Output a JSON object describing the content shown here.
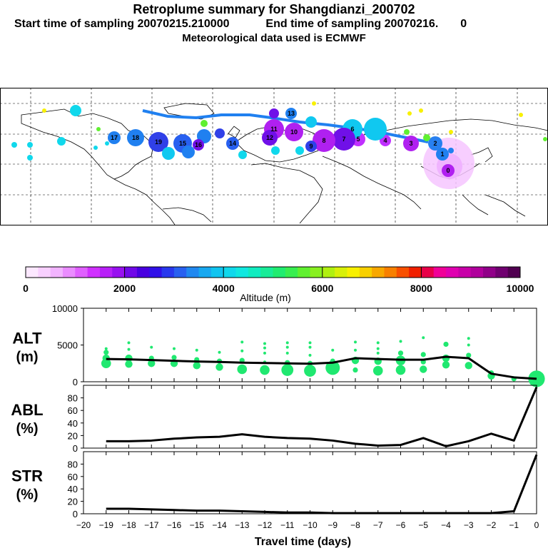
{
  "header": {
    "title": "Retroplume summary for Shangdianzi_200702",
    "start_label": "Start time of sampling 20070215.210000",
    "end_label": "End time of sampling 20070216.",
    "end_value": "0",
    "met_line": "Meteorological data used is ECMWF"
  },
  "colorbar": {
    "label": "Altitude (m)",
    "ticks": [
      0,
      2000,
      4000,
      6000,
      8000,
      10000
    ],
    "colors": [
      "#fce8ff",
      "#f8d0ff",
      "#f2b4ff",
      "#ea8cff",
      "#e060ff",
      "#d030ff",
      "#b820f8",
      "#9810f0",
      "#7008e8",
      "#4800e0",
      "#3010e8",
      "#2838ee",
      "#2860f0",
      "#2088f0",
      "#18a8f0",
      "#10c4f0",
      "#10d8ec",
      "#10e8e0",
      "#10ecc0",
      "#18ec98",
      "#20ec70",
      "#38ee50",
      "#60f030",
      "#88f020",
      "#b0f010",
      "#d8f008",
      "#f8f000",
      "#f8d000",
      "#f8a800",
      "#f88000",
      "#f85000",
      "#f02000",
      "#e80048",
      "#f00098",
      "#e000b0",
      "#c800a8",
      "#b0009c",
      "#900088",
      "#700070",
      "#500050"
    ]
  },
  "map": {
    "trajectory_labels": [
      "0",
      "1",
      "2",
      "3",
      "4",
      "5",
      "6",
      "7",
      "8",
      "9",
      "10",
      "11",
      "12",
      "13",
      "14",
      "15",
      "16",
      "17",
      "18",
      "19"
    ]
  },
  "chart_data": {
    "type": "line",
    "x_label": "Travel time (days)",
    "x_ticks": [
      -20,
      -19,
      -18,
      -17,
      -16,
      -15,
      -14,
      -13,
      -12,
      -11,
      -10,
      -9,
      -8,
      -7,
      -6,
      -5,
      -4,
      -3,
      -2,
      -1,
      0
    ],
    "x_tick_labels": [
      "−20",
      "−19",
      "−18",
      "−17",
      "−16",
      "−15",
      "−14",
      "−13",
      "−12",
      "−11",
      "−10",
      "−9",
      "−8",
      "−7",
      "−6",
      "−5",
      "−4",
      "−3",
      "−2",
      "−1",
      "0"
    ],
    "xlim": [
      -20,
      0
    ],
    "panels": [
      {
        "id": "alt",
        "title_line1": "ALT",
        "title_line2": "(m)",
        "ylim": [
          0,
          10000
        ],
        "y_ticks": [
          0,
          5000,
          10000
        ],
        "y_tick_labels": [
          "0",
          "5000",
          "10000"
        ],
        "mean_line": [
          [
            -19,
            3100
          ],
          [
            -18,
            3050
          ],
          [
            -17,
            2950
          ],
          [
            -16,
            2850
          ],
          [
            -15,
            2750
          ],
          [
            -14,
            2700
          ],
          [
            -13,
            2600
          ],
          [
            -12,
            2550
          ],
          [
            -11,
            2500
          ],
          [
            -10,
            2450
          ],
          [
            -9,
            2600
          ],
          [
            -8,
            3200
          ],
          [
            -7,
            3100
          ],
          [
            -6,
            3000
          ],
          [
            -5,
            3000
          ],
          [
            -4,
            3400
          ],
          [
            -3,
            3200
          ],
          [
            -2,
            1100
          ],
          [
            -1,
            600
          ],
          [
            0,
            400
          ]
        ],
        "clusters": [
          [
            -19,
            2500,
            3
          ],
          [
            -19,
            3200,
            2
          ],
          [
            -19,
            4000,
            1
          ],
          [
            -19,
            4500,
            0
          ],
          [
            -18,
            2400,
            2
          ],
          [
            -18,
            3200,
            2
          ],
          [
            -18,
            4400,
            0
          ],
          [
            -18,
            5300,
            0
          ],
          [
            -17,
            2500,
            2
          ],
          [
            -17,
            3200,
            1
          ],
          [
            -17,
            4700,
            0
          ],
          [
            -16,
            2500,
            2
          ],
          [
            -16,
            3300,
            1
          ],
          [
            -16,
            4500,
            0
          ],
          [
            -15,
            2200,
            2
          ],
          [
            -15,
            3000,
            1
          ],
          [
            -15,
            4300,
            0
          ],
          [
            -14,
            2000,
            2
          ],
          [
            -14,
            2800,
            1
          ],
          [
            -14,
            4000,
            0
          ],
          [
            -13,
            1700,
            3
          ],
          [
            -13,
            2900,
            1
          ],
          [
            -13,
            4200,
            0
          ],
          [
            -13,
            5400,
            0
          ],
          [
            -12,
            1600,
            3
          ],
          [
            -12,
            2700,
            0
          ],
          [
            -12,
            3900,
            0
          ],
          [
            -12,
            4600,
            0
          ],
          [
            -12,
            5200,
            0
          ],
          [
            -11,
            1600,
            4
          ],
          [
            -11,
            2600,
            1
          ],
          [
            -11,
            3900,
            0
          ],
          [
            -11,
            4700,
            0
          ],
          [
            -11,
            5300,
            0
          ],
          [
            -10,
            1500,
            4
          ],
          [
            -10,
            2500,
            1
          ],
          [
            -10,
            3600,
            0
          ],
          [
            -10,
            4700,
            0
          ],
          [
            -10,
            5300,
            0
          ],
          [
            -9,
            1900,
            5
          ],
          [
            -9,
            2800,
            1
          ],
          [
            -9,
            4300,
            0
          ],
          [
            -8,
            1600,
            1
          ],
          [
            -8,
            2900,
            2
          ],
          [
            -8,
            4300,
            0
          ],
          [
            -8,
            5400,
            0
          ],
          [
            -7,
            1500,
            3
          ],
          [
            -7,
            2800,
            2
          ],
          [
            -7,
            3900,
            0
          ],
          [
            -7,
            4500,
            0
          ],
          [
            -7,
            5300,
            0
          ],
          [
            -6,
            1600,
            3
          ],
          [
            -6,
            2900,
            3
          ],
          [
            -6,
            3900,
            1
          ],
          [
            -6,
            5500,
            0
          ],
          [
            -5,
            1700,
            2
          ],
          [
            -5,
            2700,
            1
          ],
          [
            -5,
            3700,
            1
          ],
          [
            -5,
            6000,
            0
          ],
          [
            -4,
            2300,
            2
          ],
          [
            -4,
            3200,
            2
          ],
          [
            -4,
            5100,
            1
          ],
          [
            -3,
            2200,
            2
          ],
          [
            -3,
            3600,
            1
          ],
          [
            -3,
            5000,
            0
          ],
          [
            -3,
            5900,
            0
          ],
          [
            -2,
            800,
            2
          ],
          [
            -2,
            1200,
            1
          ],
          [
            -1,
            400,
            1
          ],
          [
            0,
            400,
            6
          ]
        ]
      },
      {
        "id": "abl",
        "title_line1": "ABL",
        "title_line2": "(%)",
        "ylim": [
          0,
          100
        ],
        "y_ticks": [
          0,
          20,
          40,
          60,
          80
        ],
        "y_tick_labels": [
          "0",
          "20",
          "40",
          "60",
          "80"
        ],
        "line": [
          [
            -19,
            11
          ],
          [
            -18,
            11
          ],
          [
            -17,
            12
          ],
          [
            -16,
            15
          ],
          [
            -15,
            17
          ],
          [
            -14,
            18
          ],
          [
            -13,
            22
          ],
          [
            -12,
            18
          ],
          [
            -11,
            16
          ],
          [
            -10,
            15
          ],
          [
            -9,
            12
          ],
          [
            -8,
            7
          ],
          [
            -7,
            4
          ],
          [
            -6,
            5
          ],
          [
            -5,
            16
          ],
          [
            -4,
            3
          ],
          [
            -3,
            11
          ],
          [
            -2,
            23
          ],
          [
            -1,
            12
          ],
          [
            0,
            97
          ]
        ]
      },
      {
        "id": "str",
        "title_line1": "STR",
        "title_line2": "(%)",
        "ylim": [
          0,
          100
        ],
        "y_ticks": [
          0,
          20,
          40,
          60,
          80
        ],
        "y_tick_labels": [
          "0",
          "20",
          "40",
          "60",
          "80"
        ],
        "line": [
          [
            -19,
            8
          ],
          [
            -18,
            8
          ],
          [
            -17,
            7
          ],
          [
            -16,
            6
          ],
          [
            -15,
            5
          ],
          [
            -14,
            5
          ],
          [
            -13,
            4
          ],
          [
            -12,
            3
          ],
          [
            -11,
            2
          ],
          [
            -10,
            2
          ],
          [
            -9,
            1
          ],
          [
            -8,
            1
          ],
          [
            -7,
            1
          ],
          [
            -6,
            1
          ],
          [
            -5,
            1
          ],
          [
            -4,
            1
          ],
          [
            -3,
            1
          ],
          [
            -2,
            1
          ],
          [
            -1,
            4
          ],
          [
            0,
            95
          ]
        ]
      }
    ]
  }
}
